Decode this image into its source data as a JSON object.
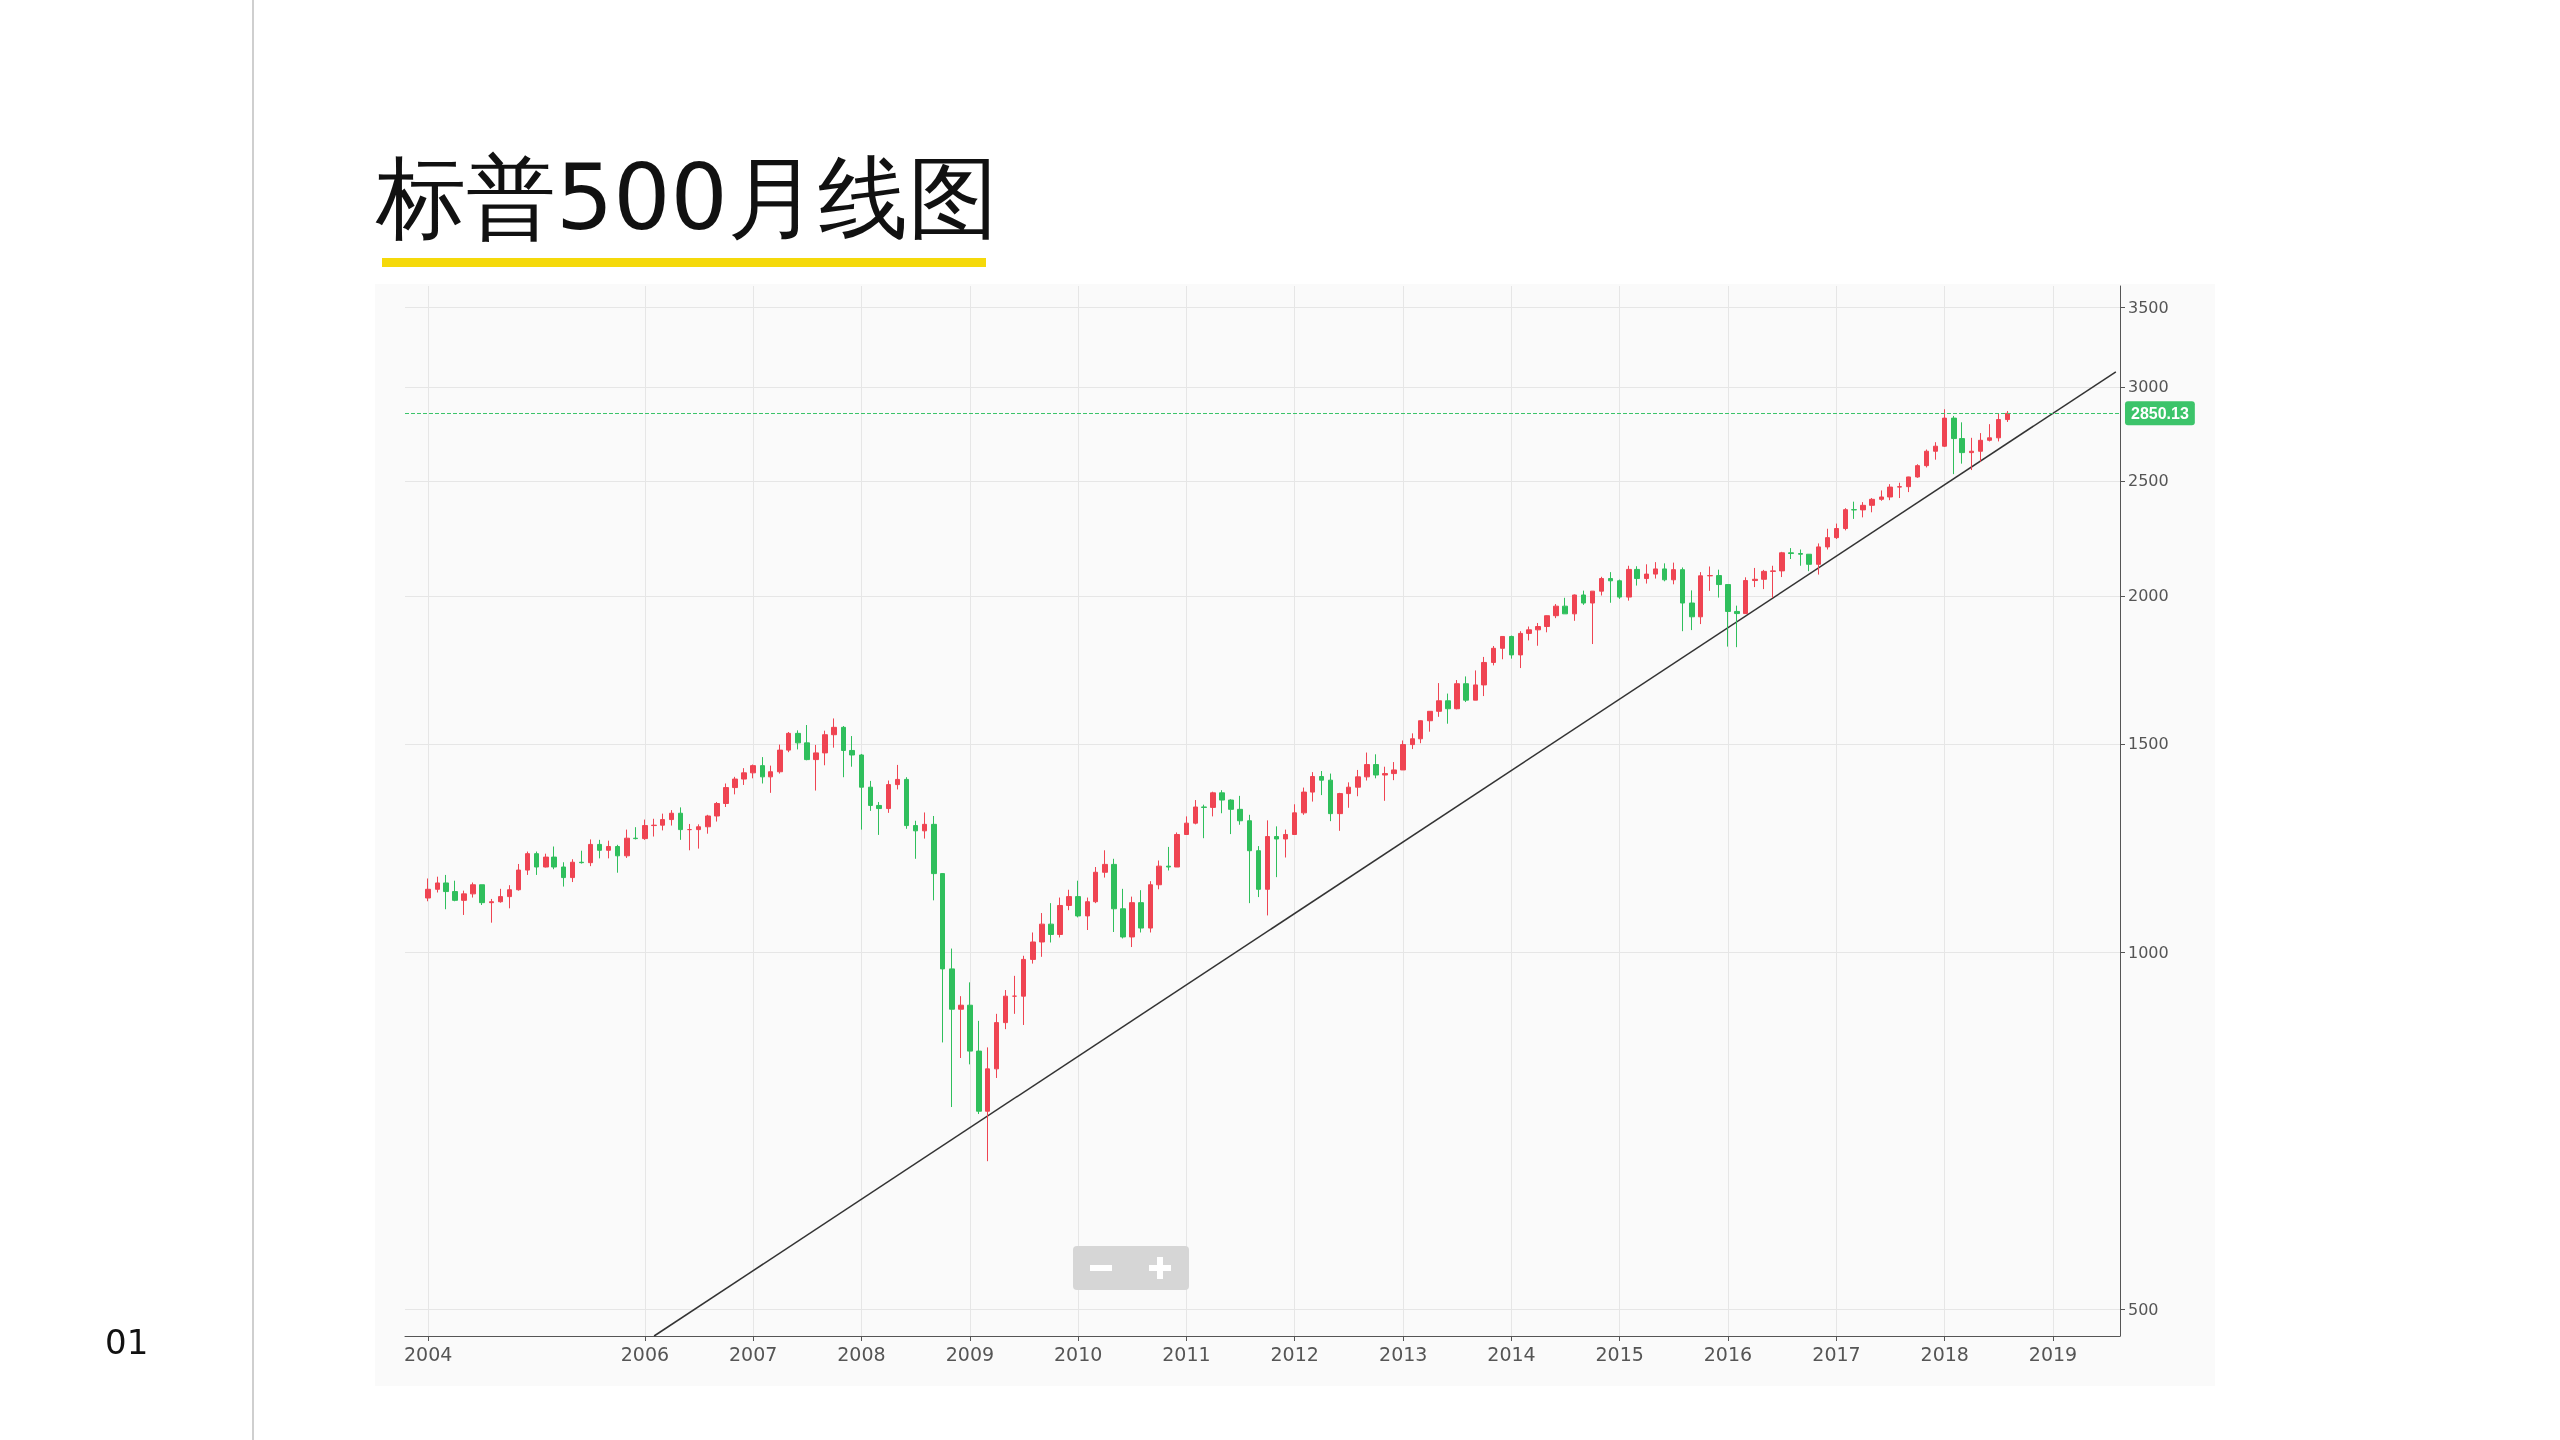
{
  "chart_data": {
    "type": "candlestick",
    "title": "标普500月线图",
    "annotations": [
      "01"
    ],
    "log": true,
    "grid": true,
    "xlim": [
      "2003-10-15",
      "2019-08-15"
    ],
    "xticks": [
      "2004",
      "2006",
      "2007",
      "2008",
      "2009",
      "2010",
      "2011",
      "2012",
      "2013",
      "2014",
      "2015",
      "2016",
      "2017",
      "2018",
      "2019"
    ],
    "ylim": [
      475,
      3650
    ],
    "yticks": [
      500,
      1000,
      1500,
      2000,
      2500,
      3000,
      3500
    ],
    "ref_lines": [
      {
        "axis": "y",
        "value": 2850.13,
        "label": "2850.13",
        "color": "#3cc46a",
        "line_style": "dashed"
      }
    ],
    "series": [
      {
        "color": "#ef4452",
        "x": [
          "2004-01",
          "2004-02",
          "2004-05",
          "2004-06",
          "2004-08",
          "2004-09",
          "2004-10",
          "2004-11",
          "2004-12",
          "2005-02",
          "2005-05",
          "2005-07",
          "2005-09",
          "2005-11",
          "2006-01",
          "2006-02",
          "2006-03",
          "2006-04",
          "2006-06",
          "2006-07",
          "2006-08",
          "2006-09",
          "2006-10",
          "2006-11",
          "2006-12",
          "2007-01",
          "2007-03",
          "2007-04",
          "2007-05",
          "2007-08",
          "2007-09",
          "2007-10",
          "2008-04",
          "2008-05",
          "2008-08",
          "2008-12",
          "2009-03",
          "2009-04",
          "2009-05",
          "2009-06",
          "2009-07",
          "2009-08",
          "2009-09",
          "2009-11",
          "2009-12",
          "2010-02",
          "2010-03",
          "2010-04",
          "2010-07",
          "2010-09",
          "2010-10",
          "2010-12",
          "2011-01",
          "2011-02",
          "2011-04",
          "2011-10",
          "2011-12",
          "2012-01",
          "2012-02",
          "2012-03",
          "2012-06",
          "2012-07",
          "2012-08",
          "2012-09",
          "2012-11",
          "2012-12",
          "2013-01",
          "2013-02",
          "2013-03",
          "2013-04",
          "2013-05",
          "2013-07",
          "2013-09",
          "2013-10",
          "2013-11",
          "2013-12",
          "2014-02",
          "2014-03",
          "2014-04",
          "2014-05",
          "2014-06",
          "2014-08",
          "2014-10",
          "2014-11",
          "2015-02",
          "2015-04",
          "2015-05",
          "2015-07",
          "2015-10",
          "2015-11",
          "2016-03",
          "2016-04",
          "2016-05",
          "2016-06",
          "2016-07",
          "2016-11",
          "2016-12",
          "2017-01",
          "2017-02",
          "2017-04",
          "2017-05",
          "2017-06",
          "2017-07",
          "2017-08",
          "2017-09",
          "2017-10",
          "2017-11",
          "2017-12",
          "2018-01",
          "2018-04",
          "2018-05",
          "2018-06",
          "2018-07",
          "2018-08"
        ],
        "ohlc": [
          [
            1112,
            1155,
            1105,
            1131
          ],
          [
            1131,
            1159,
            1124,
            1145
          ],
          [
            1107,
            1128,
            1076,
            1121
          ],
          [
            1121,
            1146,
            1113,
            1141
          ],
          [
            1102,
            1110,
            1060,
            1104
          ],
          [
            1104,
            1132,
            1102,
            1115
          ],
          [
            1115,
            1140,
            1090,
            1130
          ],
          [
            1130,
            1188,
            1128,
            1174
          ],
          [
            1174,
            1217,
            1163,
            1212
          ],
          [
            1181,
            1212,
            1180,
            1204
          ],
          [
            1157,
            1199,
            1147,
            1192
          ],
          [
            1191,
            1246,
            1183,
            1234
          ],
          [
            1220,
            1243,
            1201,
            1229
          ],
          [
            1207,
            1270,
            1202,
            1249
          ],
          [
            1248,
            1295,
            1245,
            1280
          ],
          [
            1280,
            1297,
            1253,
            1281
          ],
          [
            1281,
            1310,
            1268,
            1295
          ],
          [
            1295,
            1319,
            1280,
            1311
          ],
          [
            1270,
            1284,
            1220,
            1270
          ],
          [
            1270,
            1283,
            1224,
            1277
          ],
          [
            1277,
            1307,
            1260,
            1304
          ],
          [
            1304,
            1340,
            1290,
            1336
          ],
          [
            1336,
            1389,
            1327,
            1378
          ],
          [
            1378,
            1407,
            1360,
            1401
          ],
          [
            1401,
            1431,
            1385,
            1418
          ],
          [
            1418,
            1441,
            1403,
            1438
          ],
          [
            1407,
            1438,
            1364,
            1421
          ],
          [
            1421,
            1498,
            1416,
            1482
          ],
          [
            1482,
            1535,
            1476,
            1531
          ],
          [
            1455,
            1497,
            1370,
            1474
          ],
          [
            1474,
            1539,
            1439,
            1527
          ],
          [
            1527,
            1576,
            1489,
            1549
          ],
          [
            1323,
            1397,
            1312,
            1386
          ],
          [
            1386,
            1440,
            1373,
            1400
          ],
          [
            1267,
            1313,
            1248,
            1283
          ],
          [
            896,
            919,
            815,
            903
          ],
          [
            735,
            832,
            667,
            798
          ],
          [
            798,
            888,
            784,
            873
          ],
          [
            873,
            930,
            862,
            919
          ],
          [
            919,
            956,
            888,
            919
          ],
          [
            919,
            994,
            869,
            987
          ],
          [
            987,
            1040,
            979,
            1021
          ],
          [
            1021,
            1080,
            992,
            1057
          ],
          [
            1036,
            1113,
            1030,
            1096
          ],
          [
            1096,
            1130,
            1086,
            1115
          ],
          [
            1074,
            1113,
            1045,
            1104
          ],
          [
            1104,
            1181,
            1101,
            1169
          ],
          [
            1169,
            1220,
            1157,
            1187
          ],
          [
            1031,
            1115,
            1011,
            1102
          ],
          [
            1049,
            1149,
            1040,
            1141
          ],
          [
            1141,
            1196,
            1131,
            1183
          ],
          [
            1181,
            1263,
            1181,
            1258
          ],
          [
            1258,
            1303,
            1257,
            1286
          ],
          [
            1286,
            1345,
            1283,
            1327
          ],
          [
            1326,
            1367,
            1303,
            1364
          ],
          [
            1131,
            1293,
            1075,
            1253
          ],
          [
            1247,
            1270,
            1203,
            1258
          ],
          [
            1258,
            1334,
            1258,
            1312
          ],
          [
            1312,
            1378,
            1307,
            1366
          ],
          [
            1366,
            1420,
            1341,
            1408
          ],
          [
            1310,
            1364,
            1267,
            1362
          ],
          [
            1362,
            1392,
            1325,
            1379
          ],
          [
            1379,
            1426,
            1355,
            1407
          ],
          [
            1407,
            1475,
            1397,
            1441
          ],
          [
            1412,
            1435,
            1343,
            1416
          ],
          [
            1416,
            1448,
            1398,
            1426
          ],
          [
            1426,
            1510,
            1426,
            1498
          ],
          [
            1498,
            1531,
            1485,
            1515
          ],
          [
            1515,
            1570,
            1502,
            1569
          ],
          [
            1569,
            1598,
            1536,
            1598
          ],
          [
            1598,
            1688,
            1581,
            1631
          ],
          [
            1606,
            1698,
            1604,
            1686
          ],
          [
            1633,
            1730,
            1633,
            1682
          ],
          [
            1682,
            1776,
            1646,
            1757
          ],
          [
            1757,
            1814,
            1747,
            1806
          ],
          [
            1806,
            1849,
            1768,
            1848
          ],
          [
            1783,
            1867,
            1738,
            1859
          ],
          [
            1859,
            1884,
            1834,
            1872
          ],
          [
            1872,
            1897,
            1815,
            1884
          ],
          [
            1884,
            1925,
            1863,
            1924
          ],
          [
            1924,
            1968,
            1915,
            1960
          ],
          [
            1931,
            2005,
            1905,
            2003
          ],
          [
            1972,
            2018,
            1821,
            2018
          ],
          [
            2018,
            2075,
            2001,
            2068
          ],
          [
            1995,
            2120,
            1981,
            2105
          ],
          [
            2068,
            2126,
            2048,
            2086
          ],
          [
            2086,
            2135,
            2068,
            2107
          ],
          [
            2063,
            2133,
            2045,
            2104
          ],
          [
            1920,
            2094,
            1893,
            2079
          ],
          [
            2079,
            2117,
            2019,
            2080
          ],
          [
            1932,
            2073,
            1932,
            2060
          ],
          [
            2060,
            2111,
            2034,
            2065
          ],
          [
            2065,
            2103,
            2026,
            2097
          ],
          [
            2097,
            2120,
            1992,
            2099
          ],
          [
            2099,
            2178,
            2074,
            2174
          ],
          [
            2126,
            2214,
            2084,
            2199
          ],
          [
            2199,
            2278,
            2188,
            2239
          ],
          [
            2239,
            2301,
            2233,
            2279
          ],
          [
            2279,
            2371,
            2271,
            2364
          ],
          [
            2363,
            2399,
            2329,
            2384
          ],
          [
            2384,
            2418,
            2352,
            2412
          ],
          [
            2412,
            2454,
            2405,
            2423
          ],
          [
            2423,
            2484,
            2408,
            2470
          ],
          [
            2470,
            2491,
            2418,
            2472
          ],
          [
            2472,
            2520,
            2446,
            2519
          ],
          [
            2519,
            2582,
            2515,
            2575
          ],
          [
            2575,
            2657,
            2566,
            2648
          ],
          [
            2648,
            2695,
            2605,
            2674
          ],
          [
            2674,
            2873,
            2670,
            2824
          ],
          [
            2641,
            2718,
            2553,
            2648
          ],
          [
            2648,
            2743,
            2595,
            2705
          ],
          [
            2705,
            2791,
            2699,
            2718
          ],
          [
            2718,
            2849,
            2699,
            2816
          ],
          [
            2816,
            2863,
            2803,
            2850.13
          ]
        ]
      },
      {
        "color": "#2fbf5c",
        "x": [
          "2004-03",
          "2004-04",
          "2004-07",
          "2005-01",
          "2005-03",
          "2005-04",
          "2005-06",
          "2005-08",
          "2005-10",
          "2005-12",
          "2006-05",
          "2007-02",
          "2007-06",
          "2007-07",
          "2007-11",
          "2007-12",
          "2008-01",
          "2008-02",
          "2008-03",
          "2008-06",
          "2008-07",
          "2008-09",
          "2008-10",
          "2008-11",
          "2009-01",
          "2009-02",
          "2009-10",
          "2010-01",
          "2010-05",
          "2010-06",
          "2010-08",
          "2010-11",
          "2011-03",
          "2011-05",
          "2011-06",
          "2011-07",
          "2011-08",
          "2011-09",
          "2011-11",
          "2012-04",
          "2012-05",
          "2012-10",
          "2013-06",
          "2013-08",
          "2014-01",
          "2014-07",
          "2014-09",
          "2014-12",
          "2015-01",
          "2015-03",
          "2015-06",
          "2015-08",
          "2015-09",
          "2015-12",
          "2016-01",
          "2016-02",
          "2016-08",
          "2016-09",
          "2016-10",
          "2017-03",
          "2018-02",
          "2018-03"
        ],
        "ohlc": [
          [
            1145,
            1163,
            1088,
            1126
          ],
          [
            1126,
            1150,
            1105,
            1107
          ],
          [
            1141,
            1141,
            1097,
            1102
          ],
          [
            1212,
            1217,
            1163,
            1181
          ],
          [
            1204,
            1229,
            1176,
            1181
          ],
          [
            1181,
            1192,
            1137,
            1157
          ],
          [
            1192,
            1219,
            1189,
            1191
          ],
          [
            1234,
            1245,
            1201,
            1220
          ],
          [
            1229,
            1233,
            1168,
            1207
          ],
          [
            1249,
            1276,
            1246,
            1248
          ],
          [
            1311,
            1326,
            1245,
            1270
          ],
          [
            1438,
            1462,
            1389,
            1407
          ],
          [
            1531,
            1540,
            1484,
            1503
          ],
          [
            1503,
            1556,
            1453,
            1455
          ],
          [
            1549,
            1553,
            1406,
            1481
          ],
          [
            1481,
            1523,
            1435,
            1468
          ],
          [
            1468,
            1471,
            1270,
            1379
          ],
          [
            1379,
            1396,
            1317,
            1331
          ],
          [
            1331,
            1340,
            1257,
            1323
          ],
          [
            1400,
            1406,
            1272,
            1280
          ],
          [
            1280,
            1292,
            1200,
            1267
          ],
          [
            1283,
            1304,
            1107,
            1166
          ],
          [
            1166,
            1167,
            840,
            969
          ],
          [
            969,
            1008,
            741,
            896
          ],
          [
            903,
            944,
            805,
            826
          ],
          [
            826,
            876,
            731,
            735
          ],
          [
            1057,
            1101,
            1020,
            1036
          ],
          [
            1115,
            1150,
            1071,
            1074
          ],
          [
            1187,
            1200,
            1041,
            1089
          ],
          [
            1089,
            1132,
            1028,
            1031
          ],
          [
            1102,
            1129,
            1040,
            1049
          ],
          [
            1183,
            1228,
            1173,
            1181
          ],
          [
            1327,
            1333,
            1249,
            1326
          ],
          [
            1364,
            1371,
            1311,
            1345
          ],
          [
            1345,
            1347,
            1259,
            1321
          ],
          [
            1321,
            1356,
            1282,
            1292
          ],
          [
            1292,
            1307,
            1101,
            1219
          ],
          [
            1219,
            1230,
            1114,
            1131
          ],
          [
            1253,
            1278,
            1158,
            1247
          ],
          [
            1408,
            1423,
            1358,
            1398
          ],
          [
            1398,
            1416,
            1291,
            1310
          ],
          [
            1441,
            1470,
            1403,
            1412
          ],
          [
            1631,
            1654,
            1560,
            1606
          ],
          [
            1686,
            1710,
            1627,
            1633
          ],
          [
            1848,
            1851,
            1770,
            1783
          ],
          [
            1960,
            1992,
            1931,
            1931
          ],
          [
            2003,
            2020,
            1965,
            1972
          ],
          [
            2068,
            2094,
            1973,
            2059
          ],
          [
            2059,
            2064,
            1988,
            1995
          ],
          [
            2105,
            2118,
            2040,
            2068
          ],
          [
            2107,
            2130,
            2057,
            2063
          ],
          [
            2104,
            2113,
            1867,
            1972
          ],
          [
            1972,
            2021,
            1871,
            1920
          ],
          [
            2080,
            2104,
            1993,
            2044
          ],
          [
            2044,
            2044,
            1812,
            1940
          ],
          [
            1940,
            1962,
            1810,
            1932
          ],
          [
            2174,
            2194,
            2148,
            2171
          ],
          [
            2171,
            2188,
            2120,
            2168
          ],
          [
            2168,
            2169,
            2098,
            2126
          ],
          [
            2364,
            2401,
            2322,
            2363
          ],
          [
            2824,
            2836,
            2533,
            2714
          ],
          [
            2714,
            2801,
            2585,
            2641
          ]
        ]
      },
      {
        "type": "line",
        "color": "#333333",
        "x": [
          "2006-02",
          "2019-08"
        ],
        "values": [
          475,
          3090
        ]
      }
    ]
  }
}
